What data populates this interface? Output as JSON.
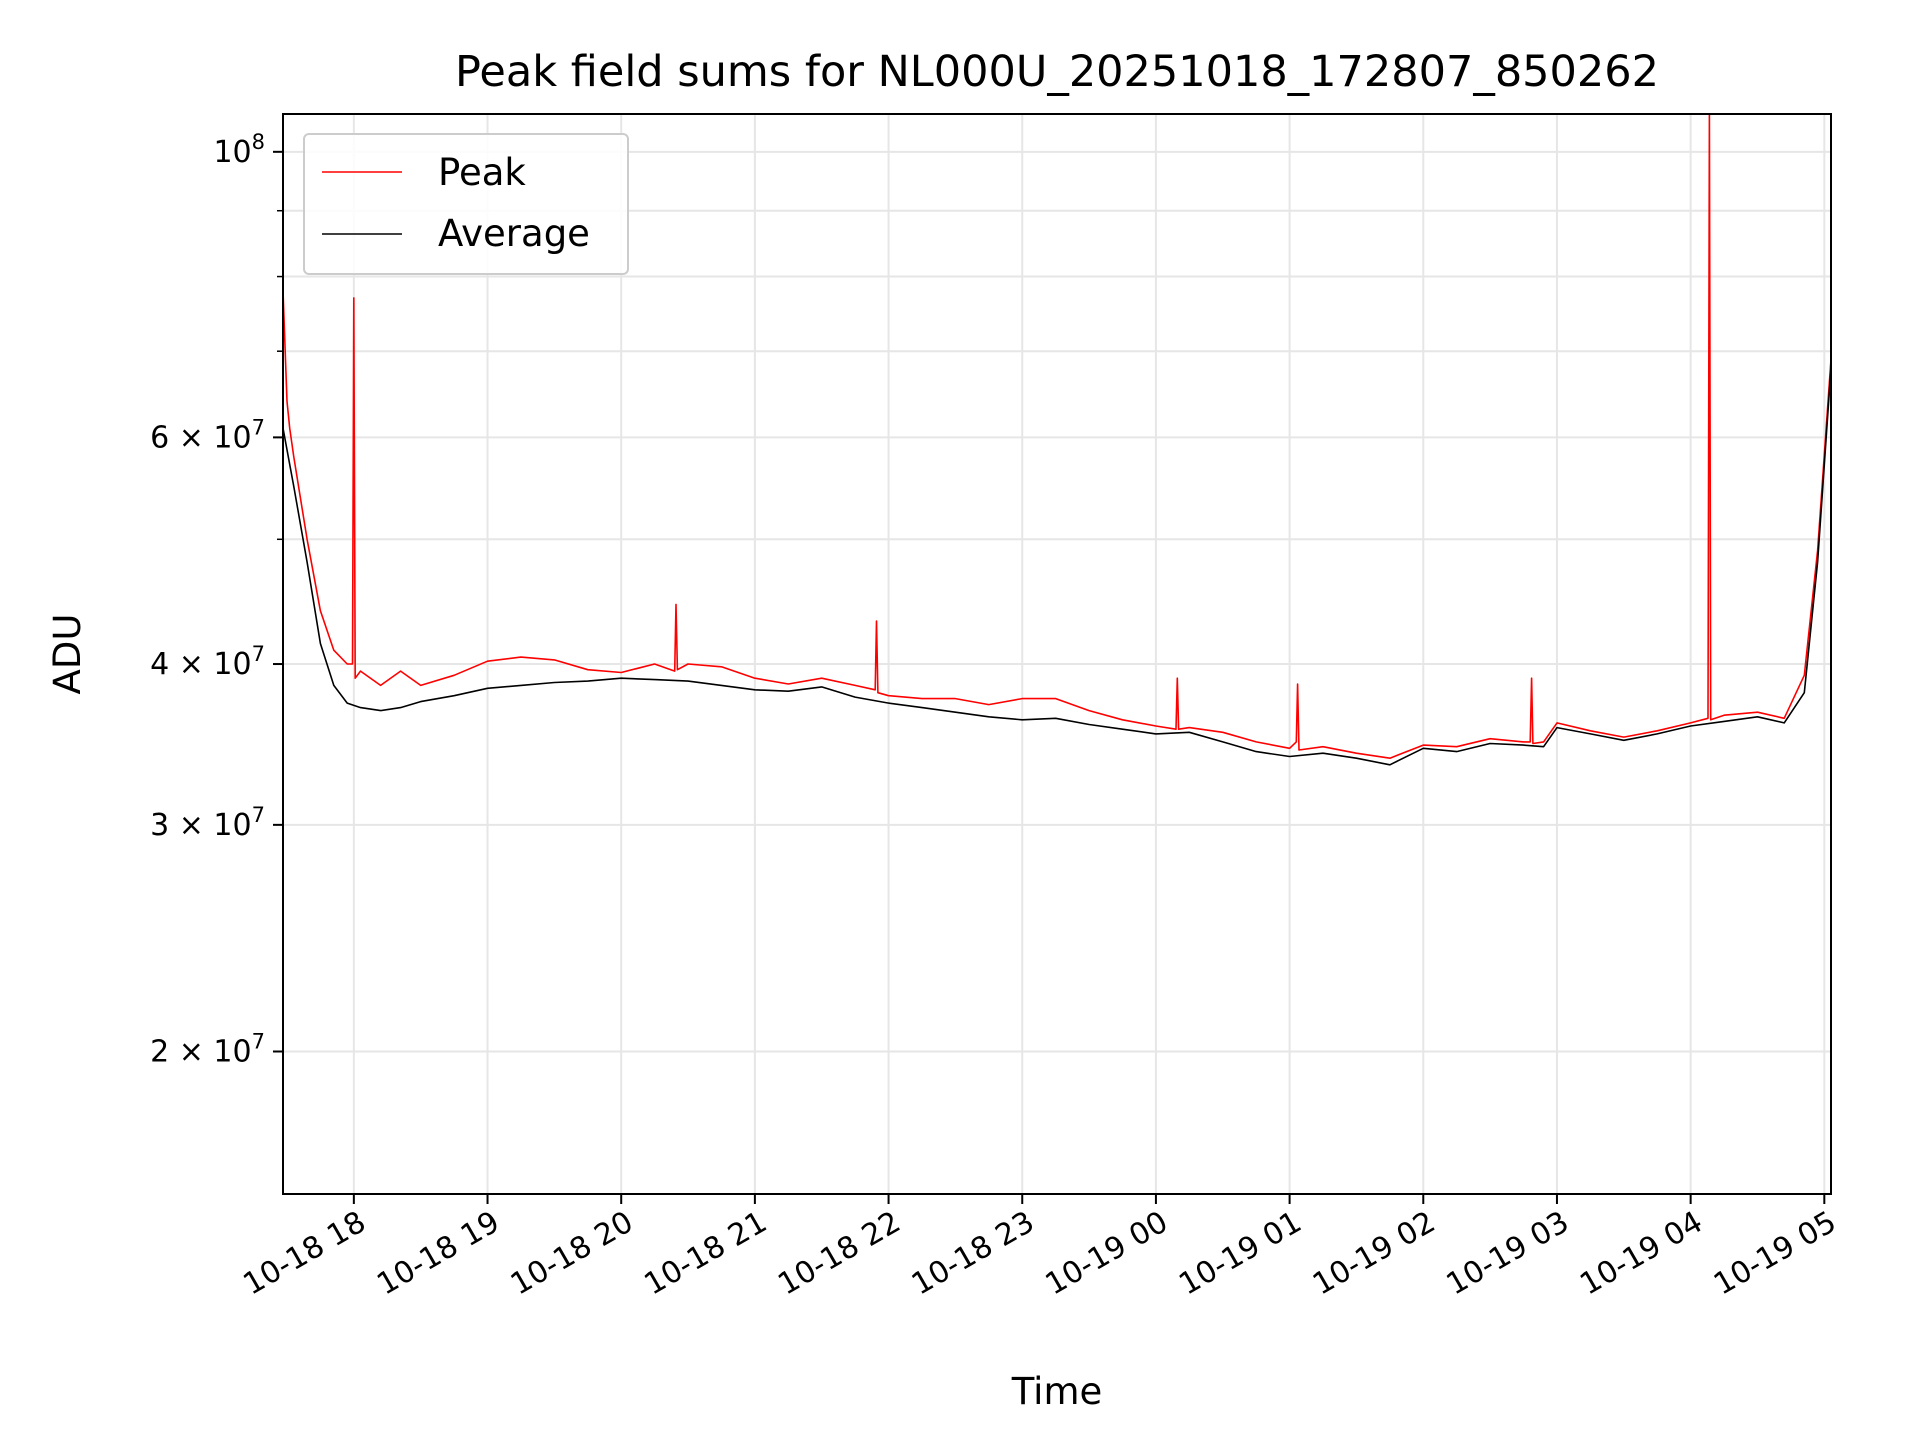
{
  "chart_data": {
    "type": "line",
    "title": "Peak field sums for NL000U_20251018_172807_850262",
    "xlabel": "Time",
    "ylabel": "ADU",
    "yscale": "log",
    "grid": true,
    "legend_position": "upper-left",
    "x_range_hours_since_10-18_17:00": [
      0.47,
      12.05
    ],
    "ylim": [
      15500000,
      107000000
    ],
    "x_ticks": [
      {
        "hour": 1,
        "label": "10-18 18"
      },
      {
        "hour": 2,
        "label": "10-18 19"
      },
      {
        "hour": 3,
        "label": "10-18 20"
      },
      {
        "hour": 4,
        "label": "10-18 21"
      },
      {
        "hour": 5,
        "label": "10-18 22"
      },
      {
        "hour": 6,
        "label": "10-18 23"
      },
      {
        "hour": 7,
        "label": "10-19 00"
      },
      {
        "hour": 8,
        "label": "10-19 01"
      },
      {
        "hour": 9,
        "label": "10-19 02"
      },
      {
        "hour": 10,
        "label": "10-19 03"
      },
      {
        "hour": 11,
        "label": "10-19 04"
      },
      {
        "hour": 12,
        "label": "10-19 05"
      }
    ],
    "y_ticks": [
      {
        "value": 20000000,
        "mantissa": "2",
        "base": "10",
        "exp": "7"
      },
      {
        "value": 30000000,
        "mantissa": "3",
        "base": "10",
        "exp": "7"
      },
      {
        "value": 40000000,
        "mantissa": "4",
        "base": "10",
        "exp": "7"
      },
      {
        "value": 60000000,
        "mantissa": "6",
        "base": "10",
        "exp": "7"
      },
      {
        "value": 100000000,
        "mantissa": "",
        "base": "10",
        "exp": "8"
      }
    ],
    "y_minor_ticks": [
      50000000,
      70000000,
      80000000,
      90000000
    ],
    "legend": [
      {
        "name": "Peak",
        "label": "Peak",
        "color": "#ff0000"
      },
      {
        "name": "Average",
        "label": "Average",
        "color": "#000000"
      }
    ],
    "series": [
      {
        "name": "Average",
        "color": "#000000",
        "hours": [
          0.47,
          0.55,
          0.65,
          0.75,
          0.85,
          0.95,
          1.05,
          1.2,
          1.35,
          1.5,
          1.75,
          2.0,
          2.25,
          2.5,
          2.75,
          3.0,
          3.25,
          3.5,
          3.75,
          4.0,
          4.25,
          4.5,
          4.75,
          5.0,
          5.25,
          5.5,
          5.75,
          6.0,
          6.25,
          6.5,
          6.75,
          7.0,
          7.25,
          7.5,
          7.75,
          8.0,
          8.25,
          8.5,
          8.75,
          9.0,
          9.25,
          9.5,
          9.75,
          9.9,
          10.0,
          10.25,
          10.5,
          10.75,
          11.0,
          11.25,
          11.5,
          11.7,
          11.85,
          11.95,
          12.05
        ],
        "values": [
          61000000,
          55000000,
          48000000,
          41500000,
          38500000,
          37300000,
          37000000,
          36800000,
          37000000,
          37400000,
          37800000,
          38300000,
          38500000,
          38700000,
          38800000,
          39000000,
          38900000,
          38800000,
          38500000,
          38200000,
          38100000,
          38400000,
          37700000,
          37300000,
          37000000,
          36700000,
          36400000,
          36200000,
          36300000,
          35900000,
          35600000,
          35300000,
          35400000,
          34800000,
          34200000,
          33900000,
          34100000,
          33800000,
          33400000,
          34400000,
          34200000,
          34700000,
          34600000,
          34500000,
          35700000,
          35300000,
          34900000,
          35300000,
          35800000,
          36100000,
          36400000,
          36000000,
          38000000,
          48000000,
          68000000
        ]
      },
      {
        "name": "Peak",
        "color": "#ff0000",
        "hours": [
          0.47,
          0.5,
          0.52,
          0.55,
          0.65,
          0.75,
          0.85,
          0.95,
          0.99,
          1.0,
          1.01,
          1.05,
          1.2,
          1.35,
          1.5,
          1.75,
          2.0,
          2.25,
          2.5,
          2.75,
          3.0,
          3.25,
          3.4,
          3.41,
          3.42,
          3.5,
          3.75,
          4.0,
          4.25,
          4.5,
          4.75,
          4.9,
          4.91,
          4.92,
          5.0,
          5.25,
          5.5,
          5.75,
          6.0,
          6.25,
          6.5,
          6.75,
          7.0,
          7.15,
          7.16,
          7.17,
          7.25,
          7.5,
          7.75,
          8.0,
          8.05,
          8.06,
          8.07,
          8.25,
          8.5,
          8.75,
          9.0,
          9.25,
          9.5,
          9.75,
          9.8,
          9.81,
          9.82,
          9.9,
          10.0,
          10.25,
          10.5,
          10.75,
          11.0,
          11.13,
          11.14,
          11.15,
          11.25,
          11.5,
          11.7,
          11.85,
          11.95,
          12.05
        ],
        "values": [
          78000000,
          64000000,
          61000000,
          58000000,
          50000000,
          44000000,
          41000000,
          40000000,
          40000000,
          77000000,
          39000000,
          39500000,
          38500000,
          39500000,
          38500000,
          39200000,
          40200000,
          40500000,
          40300000,
          39600000,
          39400000,
          40000000,
          39500000,
          44500000,
          39600000,
          40000000,
          39800000,
          39000000,
          38600000,
          39000000,
          38500000,
          38200000,
          43200000,
          38000000,
          37800000,
          37600000,
          37600000,
          37200000,
          37600000,
          37600000,
          36800000,
          36200000,
          35800000,
          35600000,
          39000000,
          35600000,
          35700000,
          35400000,
          34800000,
          34400000,
          34800000,
          38600000,
          34300000,
          34500000,
          34100000,
          33800000,
          34600000,
          34500000,
          35000000,
          34800000,
          34800000,
          39000000,
          34700000,
          34800000,
          36000000,
          35500000,
          35100000,
          35500000,
          36000000,
          36300000,
          108000000,
          36200000,
          36500000,
          36700000,
          36300000,
          39200000,
          49000000,
          69000000
        ]
      }
    ]
  }
}
